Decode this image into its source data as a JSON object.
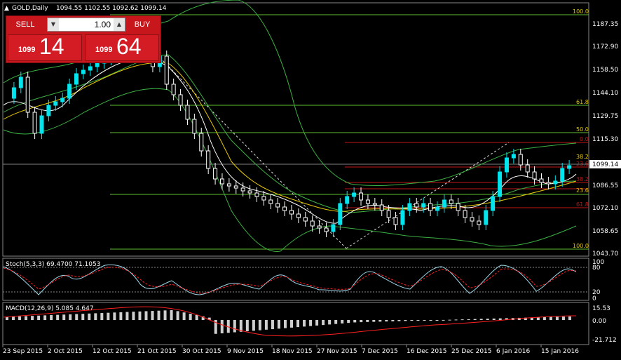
{
  "header": {
    "symbol_label": "GOLD,Daily",
    "ohlc": "1094.55 1102.55 1092.62 1099.14"
  },
  "trade_panel": {
    "sell_label": "SELL",
    "buy_label": "BUY",
    "lot_value": "1.00",
    "sell_price_prefix": "1099",
    "sell_price_big": "14",
    "buy_price_prefix": "1099",
    "buy_price_big": "64",
    "down_arrow": "▼",
    "up_arrow": "▲"
  },
  "price_axis": {
    "ticks": [
      "1187.35",
      "1172.90",
      "1158.50",
      "1144.10",
      "1129.75",
      "1115.30",
      "1100.90",
      "1086.55",
      "1072.10",
      "1058.65",
      "1043.70"
    ],
    "current_price": "1099.14"
  },
  "fib_levels_main": [
    "100.0",
    "61.8",
    "50.0",
    "0.0"
  ],
  "fib_levels_right": [
    "38.2",
    "23.6",
    "38.2",
    "23.6",
    "61.8",
    "100.0"
  ],
  "stoch": {
    "label": "Stoch(5,3,3) 69.4700 71.1053",
    "axis": [
      "100",
      "80",
      "20",
      "0"
    ]
  },
  "macd": {
    "label": "MACD(12,26,9) 5.085 4.647",
    "axis": [
      "15.53",
      "0.00",
      "-21.712"
    ]
  },
  "time_axis": [
    "23 Sep 2015",
    "2 Oct 2015",
    "12 Oct 2015",
    "21 Oct 2015",
    "30 Oct 2015",
    "9 Nov 2015",
    "18 Nov 2015",
    "27 Nov 2015",
    "7 Dec 2015",
    "16 Dec 2015",
    "25 Dec 2015",
    "6 Jan 2016",
    "15 Jan 2016"
  ],
  "colors": {
    "bull_candle": "#00e5ee",
    "bear_candle": "#ffffff",
    "bollinger": "#3cb043",
    "fib_main": "#5fbf2f",
    "fib_right": "#c01818",
    "signal": "#ff2020"
  }
}
